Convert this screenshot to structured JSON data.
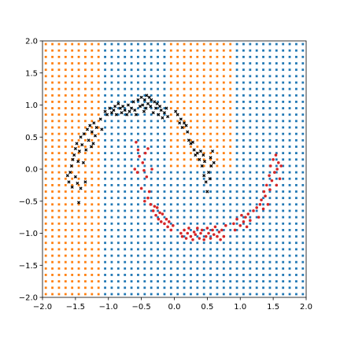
{
  "chart_data": {
    "type": "scatter",
    "title": "",
    "xlabel": "",
    "ylabel": "",
    "xlim": [
      -2.0,
      2.0
    ],
    "ylim": [
      -2.0,
      2.0
    ],
    "grid": false,
    "legend": "none",
    "x_ticks": [
      "−2.0",
      "−1.5",
      "−1.0",
      "−0.5",
      "0.0",
      "0.5",
      "1.0",
      "1.5",
      "2.0"
    ],
    "x_tick_values": [
      -2.0,
      -1.5,
      -1.0,
      -0.5,
      0.0,
      0.5,
      1.0,
      1.5,
      2.0
    ],
    "y_ticks": [
      "−2.0",
      "−1.5",
      "−1.0",
      "−0.5",
      "0.0",
      "0.5",
      "1.0",
      "1.5",
      "2.0"
    ],
    "y_tick_values": [
      -2.0,
      -1.5,
      -1.0,
      -0.5,
      0.0,
      0.5,
      1.0,
      1.5,
      2.0
    ],
    "colors": {
      "region_class_0": "#ff7f0e",
      "region_class_1": "#1f77b4",
      "points_class_0": "#000000",
      "points_class_1": "#d62728"
    },
    "decision_grid": {
      "x_start": -1.95,
      "x_end": 1.95,
      "x_step": 0.1,
      "y_start": -1.95,
      "y_end": 1.95,
      "y_step": 0.1,
      "boundaries": [
        {
          "y_max": -0.05,
          "class0_x_max": -1.1,
          "class0_x_min2": 99
        },
        {
          "y_max": 1.95,
          "class0_x_max": -1.1,
          "class0_x_min2": 1.3
        }
      ],
      "class0_mid_band": {
        "y_min": -0.05,
        "x_min": -0.05,
        "x_max": 0.9
      }
    },
    "series": [
      {
        "class": 0,
        "marker": "x",
        "points": [
          [
            -1.62,
            -0.1
          ],
          [
            -1.6,
            -0.2
          ],
          [
            -1.58,
            -0.05
          ],
          [
            -1.56,
            0.05
          ],
          [
            -1.55,
            -0.28
          ],
          [
            -1.54,
            0.15
          ],
          [
            -1.52,
            0.22
          ],
          [
            -1.5,
            -0.12
          ],
          [
            -1.5,
            0.32
          ],
          [
            -1.48,
            0.4
          ],
          [
            -1.47,
            -0.22
          ],
          [
            -1.46,
            0.12
          ],
          [
            -1.45,
            -0.52
          ],
          [
            -1.44,
            0.28
          ],
          [
            -1.42,
            0.5
          ],
          [
            -1.42,
            -0.3
          ],
          [
            -1.4,
            0.38
          ],
          [
            -1.38,
            0.1
          ],
          [
            -1.37,
            0.55
          ],
          [
            -1.35,
            -0.2
          ],
          [
            -1.34,
            0.3
          ],
          [
            -1.32,
            0.62
          ],
          [
            -1.3,
            0.45
          ],
          [
            -1.28,
            0.68
          ],
          [
            -1.26,
            0.35
          ],
          [
            -1.25,
            0.58
          ],
          [
            -1.23,
            0.4
          ],
          [
            -1.22,
            0.72
          ],
          [
            -1.2,
            0.52
          ],
          [
            -1.18,
            0.65
          ],
          [
            -1.12,
            0.78
          ],
          [
            -1.1,
            0.62
          ],
          [
            -1.05,
            0.9
          ],
          [
            -1.02,
            0.85
          ],
          [
            -0.98,
            0.95
          ],
          [
            -0.95,
            0.88
          ],
          [
            -0.92,
            0.92
          ],
          [
            -0.9,
            0.98
          ],
          [
            -0.88,
            0.85
          ],
          [
            -0.85,
            1.02
          ],
          [
            -0.82,
            0.95
          ],
          [
            -0.8,
            0.88
          ],
          [
            -0.78,
            0.98
          ],
          [
            -0.75,
            0.92
          ],
          [
            -0.72,
            0.85
          ],
          [
            -0.7,
            1.0
          ],
          [
            -0.68,
            0.9
          ],
          [
            -0.65,
            0.95
          ],
          [
            -0.62,
            1.05
          ],
          [
            -0.6,
            0.92
          ],
          [
            -0.58,
            0.85
          ],
          [
            -0.55,
            1.08
          ],
          [
            -0.52,
            0.98
          ],
          [
            -0.5,
            1.12
          ],
          [
            -0.48,
            1.0
          ],
          [
            -0.46,
            0.9
          ],
          [
            -0.45,
            1.08
          ],
          [
            -0.43,
            0.95
          ],
          [
            -0.42,
            1.15
          ],
          [
            -0.4,
            1.02
          ],
          [
            -0.38,
            1.12
          ],
          [
            -0.36,
            0.98
          ],
          [
            -0.35,
            1.08
          ],
          [
            -0.32,
            0.88
          ],
          [
            -0.3,
            1.05
          ],
          [
            -0.28,
            0.95
          ],
          [
            -0.26,
            1.02
          ],
          [
            -0.24,
            0.85
          ],
          [
            -0.22,
            0.98
          ],
          [
            -0.2,
            0.92
          ],
          [
            -0.18,
            0.8
          ],
          [
            -0.15,
            0.88
          ],
          [
            -0.12,
            0.95
          ],
          [
            -0.1,
            0.82
          ],
          [
            0.02,
            0.9
          ],
          [
            0.05,
            0.85
          ],
          [
            0.08,
            0.72
          ],
          [
            0.1,
            0.78
          ],
          [
            0.12,
            0.65
          ],
          [
            0.15,
            0.72
          ],
          [
            0.18,
            0.68
          ],
          [
            0.2,
            0.58
          ],
          [
            0.22,
            0.45
          ],
          [
            0.25,
            0.4
          ],
          [
            0.28,
            0.42
          ],
          [
            0.3,
            0.3
          ],
          [
            0.32,
            0.22
          ],
          [
            0.35,
            0.25
          ],
          [
            0.38,
            0.15
          ],
          [
            0.4,
            0.28
          ],
          [
            0.42,
            0.05
          ],
          [
            0.44,
            0.22
          ],
          [
            0.45,
            -0.1
          ],
          [
            0.46,
            0.12
          ],
          [
            0.48,
            -0.2
          ],
          [
            0.5,
            -0.35
          ],
          [
            0.52,
            -0.05
          ],
          [
            0.54,
            -0.15
          ],
          [
            0.55,
            0.18
          ],
          [
            0.56,
            0.05
          ],
          [
            0.58,
            0.28
          ],
          [
            0.6,
            0.1
          ]
        ]
      },
      {
        "class": 1,
        "marker": "o",
        "points": [
          [
            -0.58,
            0.42
          ],
          [
            -0.55,
            0.3
          ],
          [
            -0.6,
            0.0
          ],
          [
            -0.56,
            -0.05
          ],
          [
            -0.53,
            0.2
          ],
          [
            -0.5,
            -0.3
          ],
          [
            -0.48,
            0.1
          ],
          [
            -0.46,
            -0.02
          ],
          [
            -0.45,
            -0.5
          ],
          [
            -0.44,
            0.25
          ],
          [
            -0.42,
            -0.12
          ],
          [
            -0.4,
            -0.45
          ],
          [
            -0.4,
            0.32
          ],
          [
            -0.38,
            -0.35
          ],
          [
            -0.36,
            -0.55
          ],
          [
            -0.34,
            0.0
          ],
          [
            -0.32,
            -0.65
          ],
          [
            -0.3,
            -0.58
          ],
          [
            -0.28,
            -0.72
          ],
          [
            -0.26,
            -0.6
          ],
          [
            -0.24,
            -0.78
          ],
          [
            -0.22,
            -0.68
          ],
          [
            -0.2,
            -0.82
          ],
          [
            -0.18,
            -0.7
          ],
          [
            -0.15,
            -0.85
          ],
          [
            -0.12,
            -0.78
          ],
          [
            -0.1,
            -0.9
          ],
          [
            -0.08,
            -0.82
          ],
          [
            -0.05,
            -0.95
          ],
          [
            -0.02,
            -0.88
          ],
          [
            0.1,
            -1.0
          ],
          [
            0.12,
            -1.05
          ],
          [
            0.15,
            -0.95
          ],
          [
            0.18,
            -1.08
          ],
          [
            0.2,
            -1.0
          ],
          [
            0.22,
            -0.92
          ],
          [
            0.25,
            -1.05
          ],
          [
            0.28,
            -1.1
          ],
          [
            0.3,
            -0.98
          ],
          [
            0.32,
            -1.02
          ],
          [
            0.35,
            -0.92
          ],
          [
            0.38,
            -1.08
          ],
          [
            0.4,
            -1.0
          ],
          [
            0.42,
            -0.95
          ],
          [
            0.45,
            -1.1
          ],
          [
            0.48,
            -1.05
          ],
          [
            0.5,
            -0.92
          ],
          [
            0.52,
            -1.0
          ],
          [
            0.55,
            -1.08
          ],
          [
            0.58,
            -0.95
          ],
          [
            0.6,
            -1.02
          ],
          [
            0.62,
            -0.9
          ],
          [
            0.65,
            -1.05
          ],
          [
            0.68,
            -0.98
          ],
          [
            0.7,
            -1.1
          ],
          [
            0.72,
            -0.95
          ],
          [
            0.75,
            -1.05
          ],
          [
            0.78,
            -0.88
          ],
          [
            0.9,
            -0.85
          ],
          [
            0.92,
            -0.95
          ],
          [
            0.95,
            -0.78
          ],
          [
            1.0,
            -0.88
          ],
          [
            1.02,
            -0.72
          ],
          [
            1.05,
            -0.82
          ],
          [
            1.08,
            -0.75
          ],
          [
            1.1,
            -0.9
          ],
          [
            1.12,
            -0.7
          ],
          [
            1.15,
            -0.8
          ],
          [
            1.2,
            -0.65
          ],
          [
            1.25,
            -0.6
          ],
          [
            1.28,
            -0.75
          ],
          [
            1.3,
            -0.55
          ],
          [
            1.32,
            -0.48
          ],
          [
            1.35,
            -0.62
          ],
          [
            1.36,
            -0.35
          ],
          [
            1.38,
            -0.42
          ],
          [
            1.4,
            -0.25
          ],
          [
            1.42,
            -0.55
          ],
          [
            1.44,
            -0.1
          ],
          [
            1.45,
            -0.32
          ],
          [
            1.46,
            0.05
          ],
          [
            1.48,
            -0.18
          ],
          [
            1.5,
            0.15
          ],
          [
            1.52,
            -0.05
          ],
          [
            1.54,
            0.22
          ],
          [
            1.55,
            -0.25
          ],
          [
            1.56,
            0.0
          ],
          [
            1.58,
            0.1
          ],
          [
            1.6,
            -0.15
          ],
          [
            1.62,
            0.05
          ]
        ]
      }
    ]
  }
}
